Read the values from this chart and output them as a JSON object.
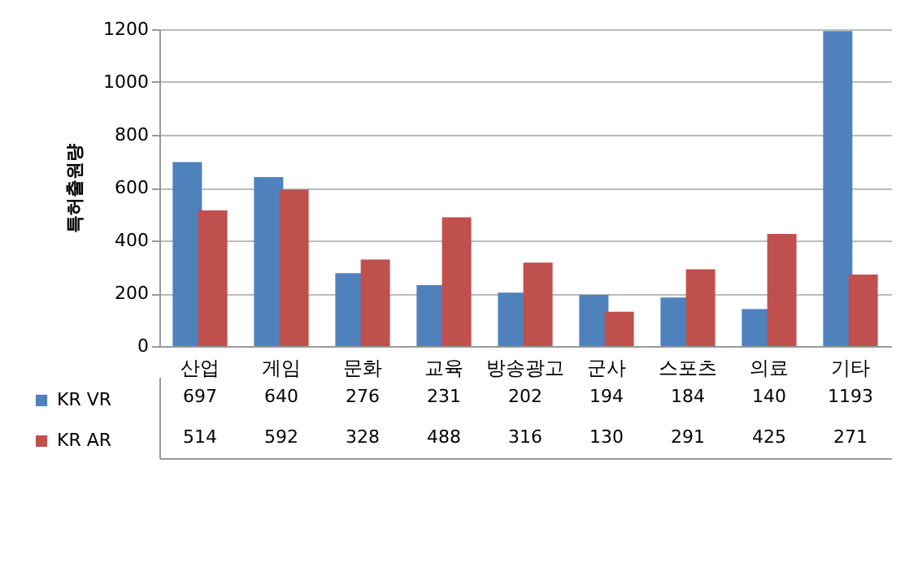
{
  "chart_data": {
    "type": "bar",
    "ylabel": "특허출원량",
    "categories": [
      "산업",
      "게임",
      "문화",
      "교육",
      "방송광고",
      "군사",
      "스포츠",
      "의료",
      "기타"
    ],
    "series": [
      {
        "name": "KR VR",
        "color": "#4f81bd",
        "values": [
          697,
          640,
          276,
          231,
          202,
          194,
          184,
          140,
          1193
        ]
      },
      {
        "name": "KR AR",
        "color": "#c0504d",
        "values": [
          514,
          592,
          328,
          488,
          316,
          130,
          291,
          425,
          271
        ]
      }
    ],
    "ylim": [
      0,
      1200
    ],
    "yticks": [
      0,
      200,
      400,
      600,
      800,
      1000,
      1200
    ],
    "grid": "y",
    "data_labels": true,
    "legend": "bottom"
  }
}
